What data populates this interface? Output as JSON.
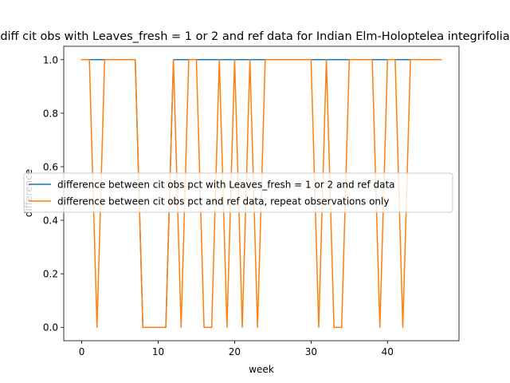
{
  "chart_data": {
    "type": "line",
    "title": "diff cit obs with Leaves_fresh = 1 or 2 and ref data for Indian Elm-Holoptelea integrifolia",
    "xlabel": "week",
    "ylabel": "difference",
    "xlim": [
      -2.35,
      49.35
    ],
    "ylim": [
      -0.05,
      1.05
    ],
    "x_ticks": [
      0,
      10,
      20,
      30,
      40
    ],
    "y_ticks": [
      0.0,
      0.2,
      0.4,
      0.6,
      0.8,
      1.0
    ],
    "x_tick_labels": [
      "0",
      "10",
      "20",
      "30",
      "40"
    ],
    "y_tick_labels": [
      "0.0",
      "0.2",
      "0.4",
      "0.6",
      "0.8",
      "1.0"
    ],
    "legend_position": "center-left",
    "series": [
      {
        "name": "difference between cit obs pct with Leaves_fresh = 1 or 2 and ref data",
        "color": "#1f77b4",
        "x": [
          0,
          1,
          2,
          3,
          4,
          5,
          6,
          7,
          8,
          9,
          10,
          11,
          12,
          13,
          14,
          15,
          16,
          17,
          18,
          19,
          20,
          21,
          22,
          23,
          24,
          25,
          26,
          27,
          28,
          29,
          30,
          31,
          32,
          33,
          34,
          35,
          36,
          37,
          38,
          39,
          40,
          41,
          42,
          43,
          44,
          45,
          46,
          47
        ],
        "values": [
          1,
          1,
          1,
          1,
          1,
          1,
          1,
          1,
          0,
          0,
          0,
          0,
          1,
          1,
          1,
          1,
          1,
          1,
          1,
          1,
          1,
          1,
          1,
          1,
          1,
          1,
          1,
          1,
          1,
          1,
          1,
          1,
          1,
          1,
          1,
          1,
          1,
          1,
          1,
          1,
          1,
          1,
          1,
          1,
          1,
          1,
          1,
          1
        ]
      },
      {
        "name": "difference between cit obs pct and ref data, repeat observations only",
        "color": "#ff7f0e",
        "x": [
          0,
          1,
          2,
          3,
          4,
          5,
          6,
          7,
          8,
          9,
          10,
          11,
          12,
          13,
          14,
          15,
          16,
          17,
          18,
          19,
          20,
          21,
          22,
          23,
          24,
          25,
          26,
          27,
          28,
          29,
          30,
          31,
          32,
          33,
          34,
          35,
          36,
          37,
          38,
          39,
          40,
          41,
          42,
          43,
          44,
          45,
          46,
          47
        ],
        "values": [
          1,
          1,
          0,
          1,
          1,
          1,
          1,
          1,
          0,
          0,
          0,
          0,
          1,
          0,
          1,
          1,
          0,
          0,
          1,
          0,
          1,
          0,
          1,
          0,
          1,
          1,
          1,
          1,
          1,
          1,
          1,
          0,
          1,
          0,
          0,
          1,
          1,
          1,
          1,
          0,
          1,
          1,
          0,
          1,
          1,
          1,
          1,
          1
        ]
      }
    ]
  }
}
